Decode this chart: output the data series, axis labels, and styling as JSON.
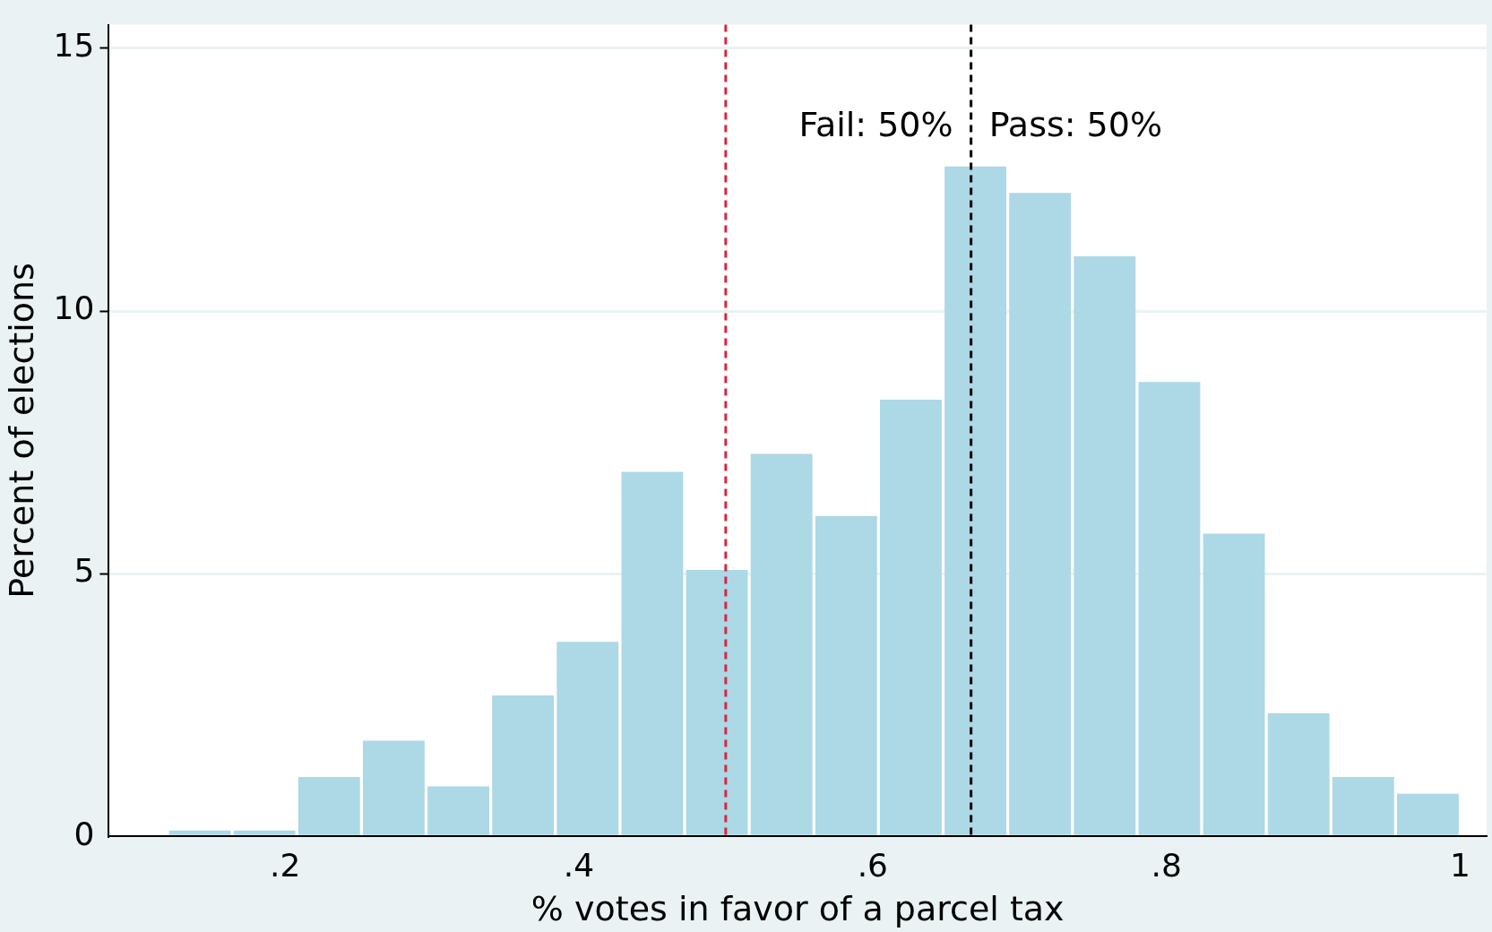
{
  "chart_data": {
    "type": "histogram",
    "xlabel": "% votes in favor of a parcel tax",
    "ylabel": "Percent of elections",
    "bins": [
      0.12,
      0.164,
      0.208,
      0.252,
      0.296,
      0.34,
      0.384,
      0.428,
      0.472,
      0.516,
      0.56,
      0.604,
      0.648,
      0.692,
      0.736,
      0.78,
      0.824,
      0.868,
      0.912,
      0.956,
      1.0
    ],
    "values": [
      0.11,
      0.11,
      1.13,
      1.82,
      0.95,
      2.68,
      3.7,
      6.94,
      5.07,
      7.28,
      6.1,
      8.31,
      12.75,
      12.25,
      11.04,
      8.65,
      5.76,
      2.34,
      1.13,
      0.81
    ],
    "color": "#add8e6",
    "xlim": [
      0.08,
      1.018
    ],
    "xticks": [
      {
        "value": 0.2,
        "label": ".2"
      },
      {
        "value": 0.4,
        "label": ".4"
      },
      {
        "value": 0.6,
        "label": ".6"
      },
      {
        "value": 0.8,
        "label": ".8"
      },
      1
    ],
    "ylim": [
      0,
      15.45
    ],
    "yticks": [
      0,
      5,
      10,
      15
    ],
    "grid": "y",
    "ref_lines": [
      {
        "axis": "x",
        "value": 0.5,
        "color": "#d6263d",
        "line_style": "dashed"
      },
      {
        "axis": "x",
        "value": 0.667,
        "color": "#000000",
        "line_style": "dashed"
      }
    ],
    "annotations": [
      {
        "text": "Fail: 50%",
        "x": 0.667,
        "y": 13.5
      },
      {
        "text": "Pass: 50%",
        "x": 0.667,
        "y": 13.5
      }
    ]
  }
}
